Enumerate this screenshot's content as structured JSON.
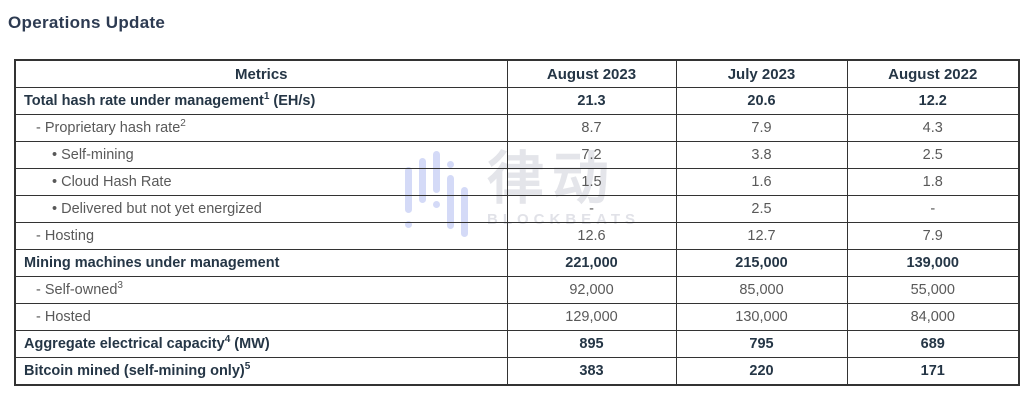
{
  "page_title": "Operations Update",
  "colors": {
    "title_text": "#2d3b52",
    "table_border": "#333333",
    "bold_text": "#253646",
    "body_text": "#595959",
    "watermark_icon_blue": "#ccd4f6",
    "watermark_text_gray": "#e4e5ea"
  },
  "watermark": {
    "icon": "blockbeats-equalizer-logo-icon",
    "cjk": "律动",
    "latin": "BLOCKBEATS"
  },
  "chart_data": {
    "type": "table",
    "title": "Operations Update",
    "columns": [
      "Metrics",
      "August 2023",
      "July 2023",
      "August 2022"
    ],
    "rows": [
      {
        "label": "Total hash rate under management",
        "sup": "1",
        "suffix": " (EH/s)",
        "bold": true,
        "indent": 0,
        "values": [
          "21.3",
          "20.6",
          "12.2"
        ]
      },
      {
        "label": "- Proprietary hash rate",
        "sup": "2",
        "suffix": "",
        "bold": false,
        "indent": 1,
        "values": [
          "8.7",
          "7.9",
          "4.3"
        ]
      },
      {
        "label": "• Self-mining",
        "sup": "",
        "suffix": "",
        "bold": false,
        "indent": 2,
        "values": [
          "7.2",
          "3.8",
          "2.5"
        ]
      },
      {
        "label": "• Cloud Hash Rate",
        "sup": "",
        "suffix": "",
        "bold": false,
        "indent": 2,
        "values": [
          "1.5",
          "1.6",
          "1.8"
        ]
      },
      {
        "label": "• Delivered but not yet energized",
        "sup": "",
        "suffix": "",
        "bold": false,
        "indent": 2,
        "values": [
          "-",
          "2.5",
          "-"
        ]
      },
      {
        "label": "- Hosting",
        "sup": "",
        "suffix": "",
        "bold": false,
        "indent": 1,
        "values": [
          "12.6",
          "12.7",
          "7.9"
        ]
      },
      {
        "label": "Mining machines under management",
        "sup": "",
        "suffix": "",
        "bold": true,
        "indent": 0,
        "values": [
          "221,000",
          "215,000",
          "139,000"
        ]
      },
      {
        "label": "- Self-owned",
        "sup": "3",
        "suffix": "",
        "bold": false,
        "indent": 1,
        "values": [
          "92,000",
          "85,000",
          "55,000"
        ]
      },
      {
        "label": "- Hosted",
        "sup": "",
        "suffix": "",
        "bold": false,
        "indent": 1,
        "values": [
          "129,000",
          "130,000",
          "84,000"
        ]
      },
      {
        "label": "Aggregate electrical capacity",
        "sup": "4",
        "suffix": " (MW)",
        "bold": true,
        "indent": 0,
        "values": [
          "895",
          "795",
          "689"
        ]
      },
      {
        "label": "Bitcoin mined (self-mining only)",
        "sup": "5",
        "suffix": "",
        "bold": true,
        "indent": 0,
        "values": [
          "383",
          "220",
          "171"
        ]
      }
    ]
  }
}
